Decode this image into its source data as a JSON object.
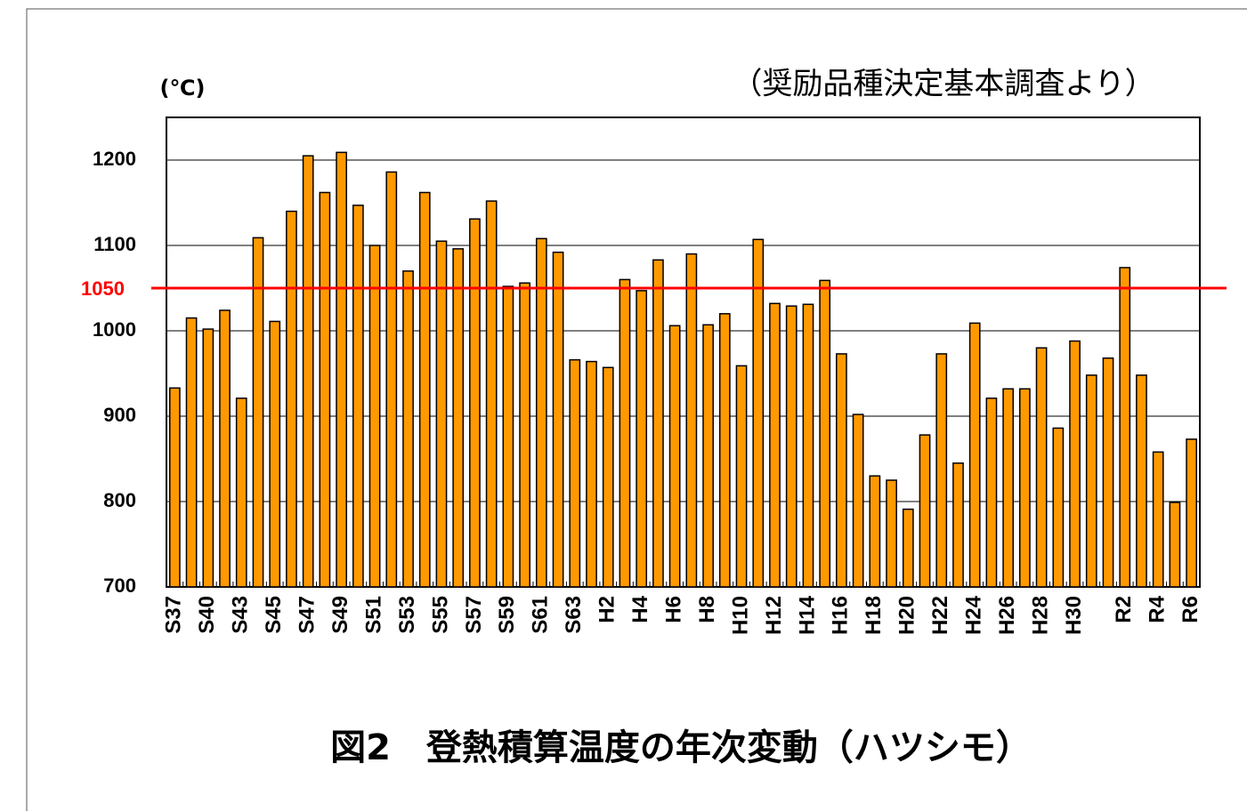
{
  "chart_data": {
    "type": "bar",
    "title": "図2　登熱積算温度の年次変動（ハツシモ）",
    "subtitle": "（奨励品種決定基本調査より）",
    "y_label": "(℃)",
    "categories": [
      "S37",
      null,
      "S40",
      null,
      "S43",
      null,
      "S45",
      null,
      "S47",
      null,
      "S49",
      null,
      "S51",
      null,
      "S53",
      null,
      "S55",
      null,
      "S57",
      null,
      "S59",
      null,
      "S61",
      null,
      "S63",
      null,
      "H2",
      null,
      "H4",
      null,
      "H6",
      null,
      "H8",
      null,
      "H10",
      null,
      "H12",
      null,
      "H14",
      null,
      "H16",
      null,
      "H18",
      null,
      "H20",
      null,
      "H22",
      null,
      "H24",
      null,
      "H26",
      null,
      "H28",
      null,
      "H30",
      null,
      null,
      "R2",
      null,
      "R4",
      null,
      "R6"
    ],
    "values": [
      933,
      1015,
      1002,
      1024,
      921,
      1109,
      1011,
      1140,
      1205,
      1162,
      1209,
      1147,
      1100,
      1186,
      1070,
      1162,
      1105,
      1096,
      1131,
      1152,
      1052,
      1056,
      1108,
      1092,
      966,
      964,
      957,
      1060,
      1047,
      1083,
      1006,
      1090,
      1007,
      1020,
      959,
      1107,
      1032,
      1029,
      1031,
      1059,
      973,
      902,
      830,
      825,
      791,
      878,
      973,
      845,
      1009,
      921,
      932,
      932,
      980,
      886,
      988,
      948,
      968,
      1074,
      948,
      858,
      799,
      873
    ],
    "color": "#ff9900",
    "ylim": [
      700,
      1250
    ],
    "yticks": [
      700,
      800,
      900,
      1000,
      1100,
      1200
    ],
    "grid": true,
    "reference_line": {
      "value": 1050,
      "color": "#ff0000"
    }
  }
}
